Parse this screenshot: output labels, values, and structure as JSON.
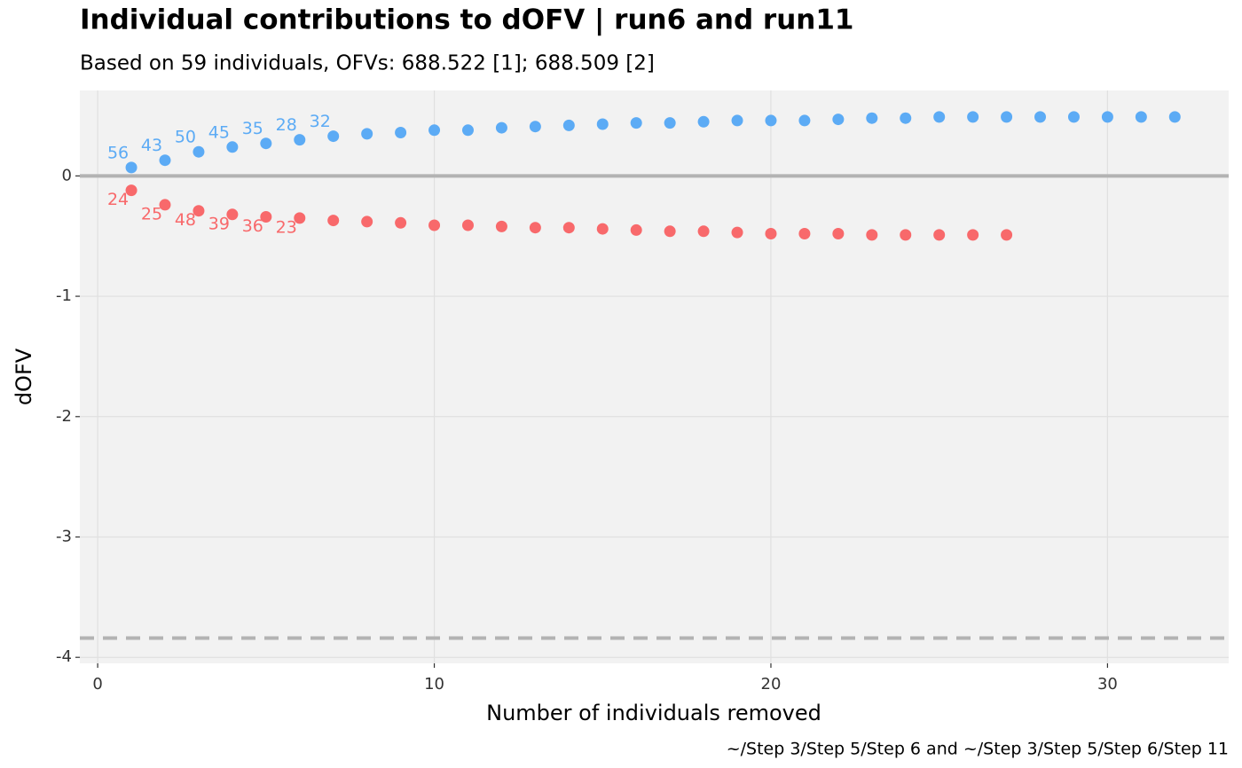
{
  "chart_data": {
    "type": "scatter",
    "title": "Individual contributions to dOFV | run6 and run11",
    "subtitle": "Based on 59 individuals, OFVs: 688.522 [1]; 688.509 [2]",
    "x_label": "Number of individuals removed",
    "y_label": "dOFV",
    "caption": "~/Step 3/Step 5/Step 6 and ~/Step 3/Step 5/Step 6/Step 11",
    "xlim": [
      -0.53,
      33.6
    ],
    "ylim": [
      -4.05,
      0.71
    ],
    "xticks": [
      0,
      10,
      20,
      30
    ],
    "yticks": [
      -4,
      -3,
      -2,
      -1,
      0
    ],
    "grid": true,
    "hlines": [
      {
        "y": 0,
        "style": "solid",
        "color": "#b3b3b3"
      },
      {
        "y": -3.84,
        "style": "dashed",
        "color": "#b3b3b3"
      }
    ],
    "series": [
      {
        "color": "#5cabf5",
        "x": [
          1,
          2,
          3,
          4,
          5,
          6,
          7,
          8,
          9,
          10,
          11,
          12,
          13,
          14,
          15,
          16,
          17,
          18,
          19,
          20,
          21,
          22,
          23,
          24,
          25,
          26,
          27,
          28,
          29,
          30,
          31,
          32
        ],
        "values": [
          0.07,
          0.13,
          0.2,
          0.24,
          0.27,
          0.3,
          0.33,
          0.35,
          0.36,
          0.38,
          0.38,
          0.4,
          0.41,
          0.42,
          0.43,
          0.44,
          0.44,
          0.45,
          0.46,
          0.46,
          0.46,
          0.47,
          0.48,
          0.48,
          0.49,
          0.49,
          0.49,
          0.49,
          0.49,
          0.49,
          0.49,
          0.49
        ],
        "point_labels": [
          "56",
          "43",
          "50",
          "45",
          "35",
          "28",
          "32",
          null,
          null,
          null,
          null,
          null,
          null,
          null,
          null,
          null,
          null,
          null,
          null,
          null,
          null,
          null,
          null,
          null,
          null,
          null,
          null,
          null,
          null,
          null,
          null,
          null
        ],
        "label_side": "above"
      },
      {
        "color": "#f8696b",
        "x": [
          1,
          2,
          3,
          4,
          5,
          6,
          7,
          8,
          9,
          10,
          11,
          12,
          13,
          14,
          15,
          16,
          17,
          18,
          19,
          20,
          21,
          22,
          23,
          24,
          25,
          26,
          27
        ],
        "values": [
          -0.12,
          -0.24,
          -0.29,
          -0.32,
          -0.34,
          -0.35,
          -0.37,
          -0.38,
          -0.39,
          -0.41,
          -0.41,
          -0.42,
          -0.43,
          -0.43,
          -0.44,
          -0.45,
          -0.46,
          -0.46,
          -0.47,
          -0.48,
          -0.48,
          -0.48,
          -0.49,
          -0.49,
          -0.49,
          -0.49,
          -0.49
        ],
        "point_labels": [
          "24",
          "25",
          "48",
          "39",
          "36",
          "23",
          null,
          null,
          null,
          null,
          null,
          null,
          null,
          null,
          null,
          null,
          null,
          null,
          null,
          null,
          null,
          null,
          null,
          null,
          null,
          null,
          null
        ],
        "label_side": "below"
      }
    ]
  }
}
